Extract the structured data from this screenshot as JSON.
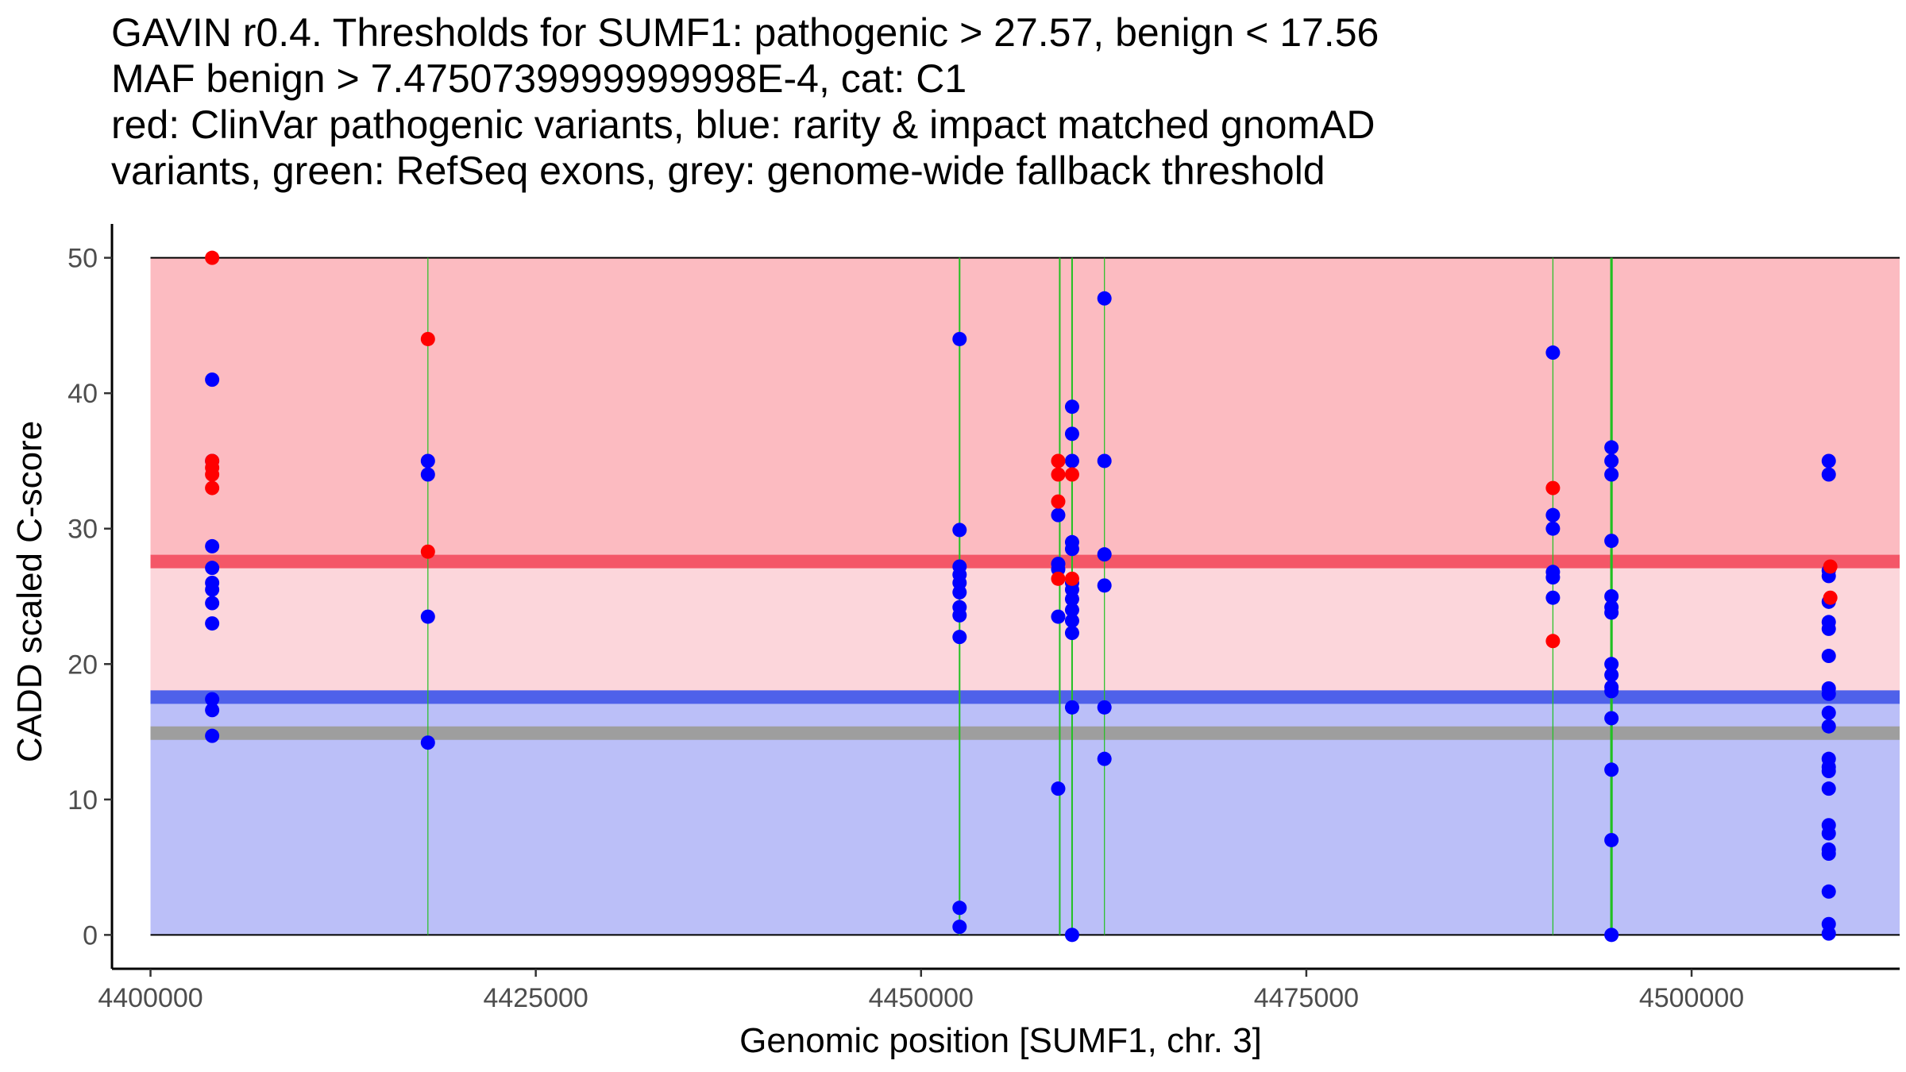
{
  "chart_data": {
    "type": "scatter",
    "title_lines": [
      "GAVIN r0.4. Thresholds for SUMF1: pathogenic > 27.57, benign < 17.56",
      "MAF benign > 7.4750739999999998E-4, cat: C1",
      "red: ClinVar pathogenic variants, blue: rarity & impact matched gnomAD",
      "variants, green: RefSeq exons, grey: genome-wide fallback threshold"
    ],
    "xlabel": "Genomic position [SUMF1, chr. 3]",
    "ylabel": "CADD scaled C-score",
    "xlim": [
      4397500,
      4513500
    ],
    "ylim": [
      -2.5,
      52.5
    ],
    "x_ticks": [
      4400000,
      4425000,
      4450000,
      4475000,
      4500000
    ],
    "x_tick_labels": [
      "4400000",
      "4425000",
      "4450000",
      "4475000",
      "4500000"
    ],
    "y_ticks": [
      0,
      10,
      20,
      30,
      40,
      50
    ],
    "y_tick_labels": [
      "0",
      "10",
      "20",
      "30",
      "40",
      "50"
    ],
    "region_x_range": [
      4400000,
      4513500
    ],
    "regions": [
      {
        "name": "pathogenic-region",
        "from": 27.57,
        "to": 50,
        "color": "#fcbbc1"
      },
      {
        "name": "uncertain-region",
        "from": 17.56,
        "to": 27.57,
        "color": "#fcd6db"
      },
      {
        "name": "benign-region",
        "from": 0,
        "to": 17.56,
        "color": "#bbbff8"
      }
    ],
    "thresholds": [
      {
        "name": "pathogenic-threshold-line",
        "value": 27.57,
        "color": "#f45768"
      },
      {
        "name": "benign-threshold-line",
        "value": 17.56,
        "color": "#4f61ea"
      },
      {
        "name": "fallback-threshold-line",
        "value": 14.9,
        "color": "#9e9e9e"
      }
    ],
    "exons": [
      {
        "x": 4418000,
        "emphasis": "thin"
      },
      {
        "x": 4452500,
        "emphasis": "normal"
      },
      {
        "x": 4459000,
        "emphasis": "normal"
      },
      {
        "x": 4459800,
        "emphasis": "normal"
      },
      {
        "x": 4461900,
        "emphasis": "thin"
      },
      {
        "x": 4491000,
        "emphasis": "thin"
      },
      {
        "x": 4494800,
        "emphasis": "bold"
      }
    ],
    "series": [
      {
        "name": "gnomAD matched variants",
        "color": "#0000ff",
        "points": [
          [
            4404000,
            41
          ],
          [
            4404000,
            35
          ],
          [
            4404000,
            28.7
          ],
          [
            4404000,
            27.1
          ],
          [
            4404000,
            26
          ],
          [
            4404000,
            25.5
          ],
          [
            4404000,
            24.5
          ],
          [
            4404000,
            23
          ],
          [
            4404000,
            17.4
          ],
          [
            4404000,
            16.6
          ],
          [
            4404000,
            14.7
          ],
          [
            4418000,
            35
          ],
          [
            4418000,
            34
          ],
          [
            4418000,
            23.5
          ],
          [
            4418000,
            14.2
          ],
          [
            4452500,
            44
          ],
          [
            4452500,
            29.9
          ],
          [
            4452500,
            27.2
          ],
          [
            4452500,
            26.6
          ],
          [
            4452500,
            26
          ],
          [
            4452500,
            25.3
          ],
          [
            4452500,
            24.2
          ],
          [
            4452500,
            23.6
          ],
          [
            4452500,
            22
          ],
          [
            4452500,
            2
          ],
          [
            4452500,
            0.6
          ],
          [
            4458900,
            31
          ],
          [
            4458900,
            27.4
          ],
          [
            4458900,
            27
          ],
          [
            4458900,
            23.5
          ],
          [
            4458900,
            10.8
          ],
          [
            4459800,
            39
          ],
          [
            4459800,
            37
          ],
          [
            4459800,
            35
          ],
          [
            4459800,
            29
          ],
          [
            4459800,
            28.5
          ],
          [
            4459800,
            26
          ],
          [
            4459800,
            25.5
          ],
          [
            4459800,
            24.8
          ],
          [
            4459800,
            24
          ],
          [
            4459800,
            23.2
          ],
          [
            4459800,
            22.3
          ],
          [
            4459800,
            16.8
          ],
          [
            4459800,
            0
          ],
          [
            4461900,
            47
          ],
          [
            4461900,
            35
          ],
          [
            4461900,
            28.1
          ],
          [
            4461900,
            25.8
          ],
          [
            4461900,
            16.8
          ],
          [
            4461900,
            13
          ],
          [
            4491000,
            43
          ],
          [
            4491000,
            31
          ],
          [
            4491000,
            30
          ],
          [
            4491000,
            26.8
          ],
          [
            4491000,
            26.4
          ],
          [
            4491000,
            24.9
          ],
          [
            4494800,
            36
          ],
          [
            4494800,
            35
          ],
          [
            4494800,
            34
          ],
          [
            4494800,
            29.1
          ],
          [
            4494800,
            25
          ],
          [
            4494800,
            24.2
          ],
          [
            4494800,
            23.8
          ],
          [
            4494800,
            20
          ],
          [
            4494800,
            19.2
          ],
          [
            4494800,
            18.3
          ],
          [
            4494800,
            18
          ],
          [
            4494800,
            16
          ],
          [
            4494800,
            12.2
          ],
          [
            4494800,
            7
          ],
          [
            4494800,
            0
          ],
          [
            4508900,
            35
          ],
          [
            4508900,
            34
          ],
          [
            4508900,
            26.9
          ],
          [
            4508900,
            26.5
          ],
          [
            4508900,
            24.6
          ],
          [
            4508900,
            23.1
          ],
          [
            4508900,
            22.6
          ],
          [
            4508900,
            20.6
          ],
          [
            4508900,
            18.2
          ],
          [
            4508900,
            17.8
          ],
          [
            4508900,
            16.4
          ],
          [
            4508900,
            15.4
          ],
          [
            4508900,
            13
          ],
          [
            4508900,
            12.4
          ],
          [
            4508900,
            12.1
          ],
          [
            4508900,
            10.8
          ],
          [
            4508900,
            8.1
          ],
          [
            4508900,
            7.5
          ],
          [
            4508900,
            6.3
          ],
          [
            4508900,
            6
          ],
          [
            4508900,
            3.2
          ],
          [
            4508900,
            0.8
          ],
          [
            4508900,
            0.1
          ]
        ]
      },
      {
        "name": "ClinVar pathogenic variants",
        "color": "#ff0000",
        "points": [
          [
            4404000,
            50
          ],
          [
            4404000,
            35
          ],
          [
            4404000,
            34.5
          ],
          [
            4404000,
            34
          ],
          [
            4404000,
            33
          ],
          [
            4418000,
            44
          ],
          [
            4418000,
            28.3
          ],
          [
            4458900,
            35
          ],
          [
            4458900,
            34
          ],
          [
            4458900,
            32
          ],
          [
            4458900,
            26.3
          ],
          [
            4459800,
            34
          ],
          [
            4459800,
            26.3
          ],
          [
            4491000,
            33
          ],
          [
            4491000,
            21.7
          ],
          [
            4509000,
            27.2
          ],
          [
            4509000,
            24.9
          ]
        ]
      }
    ]
  }
}
